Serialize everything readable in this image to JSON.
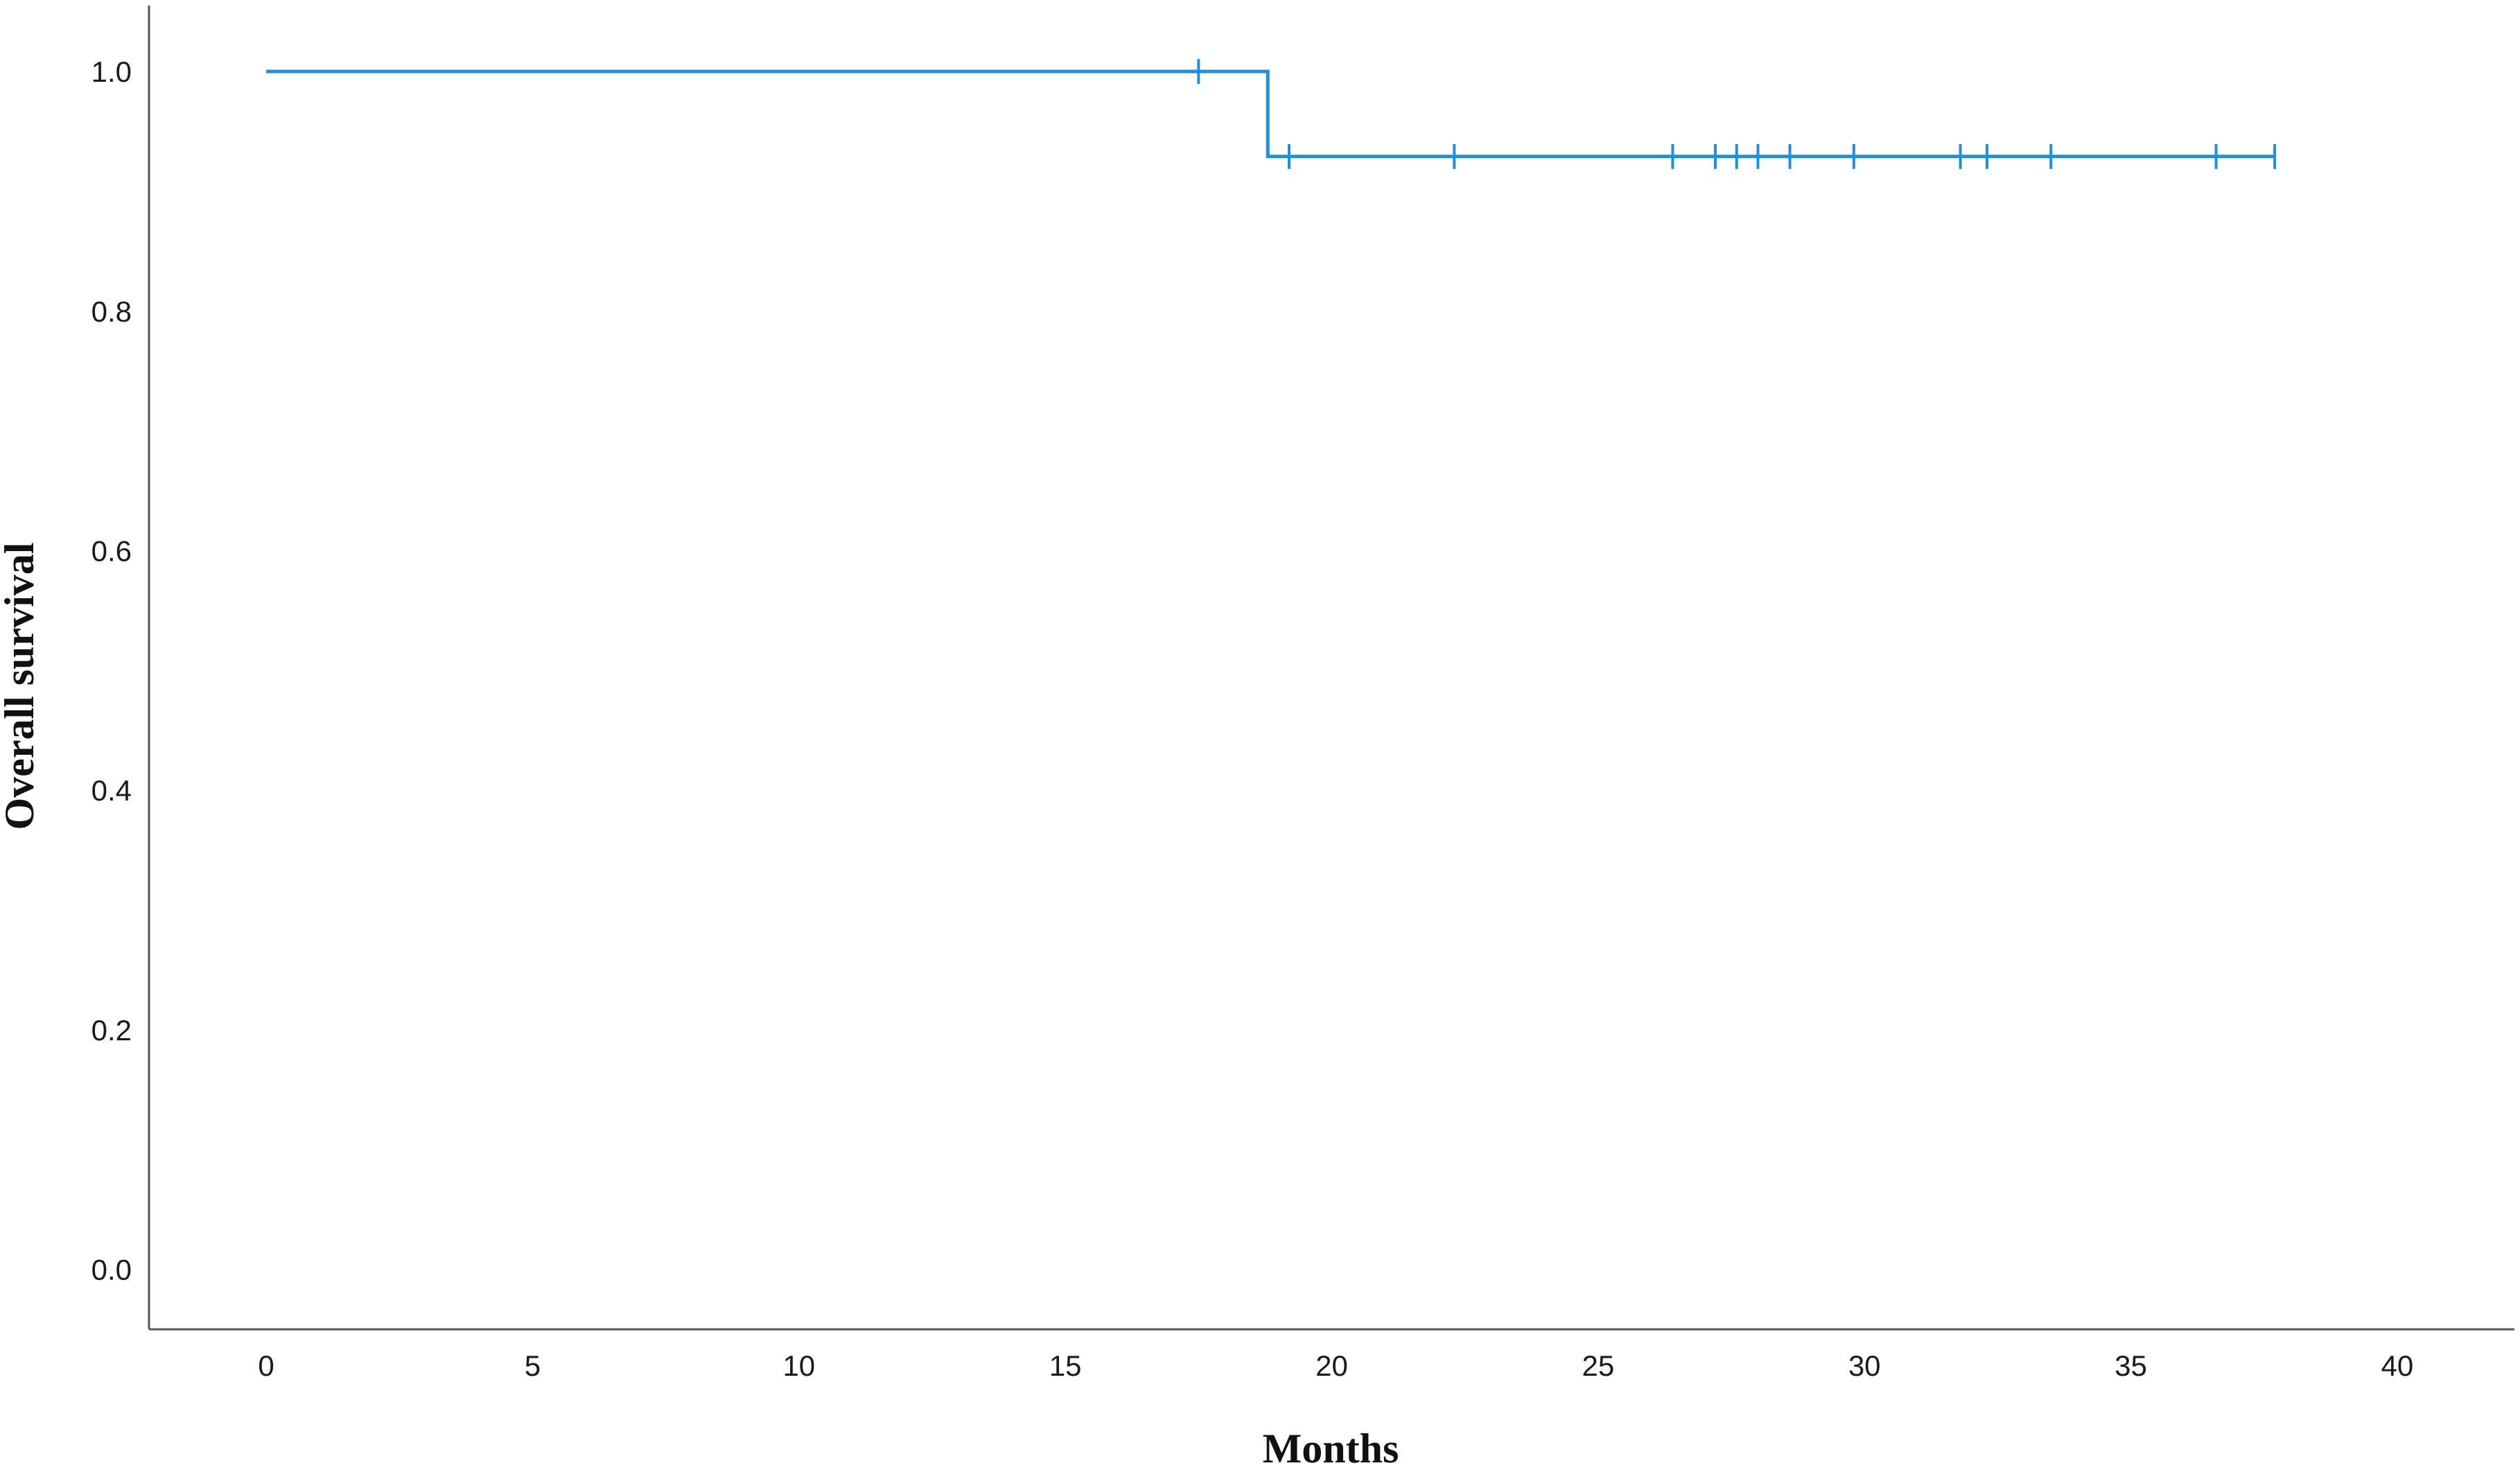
{
  "chart_data": {
    "type": "line",
    "title": "",
    "xlabel": "Months",
    "ylabel": "Overall survival",
    "xlim": [
      -2.2,
      42.2
    ],
    "ylim": [
      -0.05,
      1.055
    ],
    "x_ticks": [
      0,
      5,
      10,
      15,
      20,
      25,
      30,
      35,
      40
    ],
    "x_tick_labels": [
      "0",
      "5",
      "10",
      "15",
      "20",
      "25",
      "30",
      "35",
      "40"
    ],
    "y_ticks": [
      0.0,
      0.2,
      0.4,
      0.6,
      0.8,
      1.0
    ],
    "y_tick_labels": [
      "0.0",
      "0.2",
      "0.4",
      "0.6",
      "0.8",
      "1.0"
    ],
    "grid": false,
    "legend": "none",
    "series": [
      {
        "color": "#1f8fd8",
        "step": {
          "x": [
            0,
            18.8,
            37.7
          ],
          "y": [
            1.0,
            0.929,
            0.929
          ]
        },
        "censored": {
          "x": [
            17.5,
            19.2,
            22.3,
            26.4,
            27.2,
            27.6,
            28.0,
            28.6,
            29.8,
            31.8,
            32.3,
            33.5,
            36.6,
            37.7
          ],
          "y": [
            1.0,
            0.929,
            0.929,
            0.929,
            0.929,
            0.929,
            0.929,
            0.929,
            0.929,
            0.929,
            0.929,
            0.929,
            0.929,
            0.929
          ]
        }
      }
    ],
    "colors": {
      "line": "#1f8fd8",
      "axis": "#555555",
      "text": "#1a1a1a"
    }
  }
}
